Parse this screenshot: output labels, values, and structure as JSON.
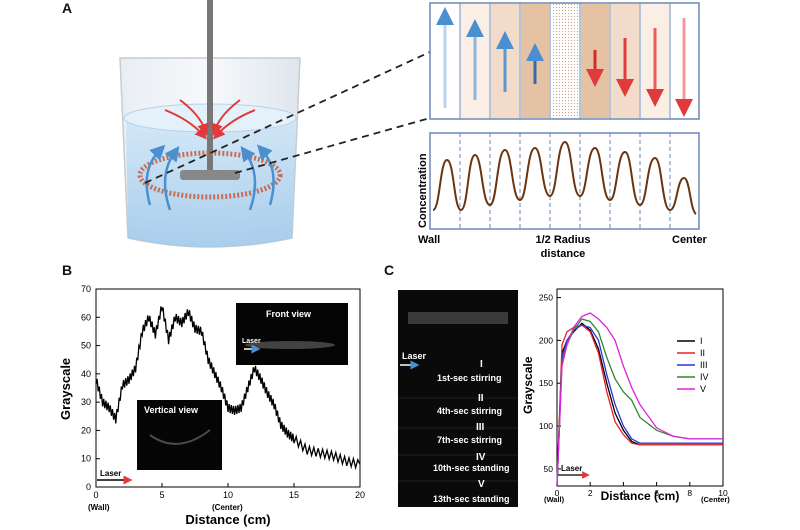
{
  "panels": {
    "a": {
      "letter": "A",
      "plot": {
        "ylabel": "Concentration",
        "x_left": "Wall",
        "x_mid1": "1/2 Radius",
        "x_mid2": "distance",
        "x_right": "Center"
      }
    },
    "b": {
      "letter": "B",
      "chart": {
        "type": "line",
        "xlabel": "Distance (cm)",
        "ylabel": "Grayscale",
        "xticks": [
          "0",
          "5",
          "10",
          "15",
          "20"
        ],
        "yticks": [
          "0",
          "10",
          "20",
          "30",
          "40",
          "50",
          "60",
          "70"
        ],
        "wall": "(Wall)",
        "center": "(Center)",
        "laser": "Laser",
        "inset_front": "Front view",
        "inset_front_laser": "Laser",
        "inset_vertical": "Vertical view"
      }
    },
    "c": {
      "letter": "C",
      "strip": {
        "laser": "Laser",
        "frames": [
          {
            "roman": "I",
            "text": "1st-sec stirring"
          },
          {
            "roman": "II",
            "text": "4th-sec stirring"
          },
          {
            "roman": "III",
            "text": "7th-sec stirring"
          },
          {
            "roman": "IV",
            "text": "10th-sec standing"
          },
          {
            "roman": "V",
            "text": "13th-sec standing"
          }
        ]
      },
      "chart": {
        "type": "line",
        "xlabel": "Distance (cm)",
        "ylabel": "Grayscale",
        "xticks": [
          "0",
          "2",
          "4",
          "6",
          "8",
          "10"
        ],
        "yticks": [
          "50",
          "100",
          "150",
          "200",
          "250"
        ],
        "wall": "(Wall)",
        "center": "(Center)",
        "laser": "Laser",
        "legend": [
          "I",
          "II",
          "III",
          "IV",
          "V"
        ]
      }
    }
  },
  "chart_data": [
    {
      "type": "line",
      "xlabel": "Distance (cm)",
      "ylabel": "Grayscale",
      "xlim": [
        0,
        20
      ],
      "ylim": [
        0,
        70
      ],
      "x": [
        0,
        0.5,
        1,
        1.5,
        2,
        2.5,
        3,
        3.5,
        4,
        4.5,
        5,
        5.5,
        6,
        6.5,
        7,
        7.5,
        8,
        8.5,
        9,
        9.5,
        10,
        10.5,
        11,
        11.5,
        12,
        12.5,
        13,
        13.5,
        14,
        14.5,
        15,
        16,
        17,
        18,
        19,
        20
      ],
      "y": [
        38,
        30,
        28,
        24,
        36,
        38,
        42,
        55,
        60,
        54,
        64,
        52,
        60,
        58,
        62,
        56,
        55,
        45,
        40,
        35,
        28,
        27,
        28,
        35,
        42,
        38,
        33,
        29,
        22,
        19,
        17,
        13,
        12,
        11,
        9,
        8
      ]
    },
    {
      "type": "line",
      "xlabel": "Distance (cm)",
      "ylabel": "Grayscale",
      "xlim": [
        0,
        10
      ],
      "ylim": [
        30,
        260
      ],
      "series": [
        {
          "name": "I",
          "color": "#000000",
          "x": [
            0,
            0.3,
            0.6,
            1,
            1.5,
            2,
            2.5,
            3,
            3.5,
            4,
            4.5,
            5,
            6,
            7,
            8,
            9,
            10
          ],
          "y": [
            30,
            185,
            200,
            210,
            220,
            212,
            190,
            150,
            115,
            95,
            82,
            78,
            78,
            78,
            78,
            78,
            78
          ]
        },
        {
          "name": "II",
          "color": "#e8202a",
          "x": [
            0,
            0.3,
            0.6,
            1,
            1.5,
            2,
            2.5,
            3,
            3.5,
            4,
            4.5,
            5,
            6,
            7,
            8,
            9,
            10
          ],
          "y": [
            30,
            195,
            210,
            215,
            218,
            210,
            185,
            140,
            105,
            90,
            80,
            78,
            78,
            78,
            78,
            78,
            78
          ]
        },
        {
          "name": "III",
          "color": "#2a36d6",
          "x": [
            0,
            0.3,
            0.6,
            1,
            1.5,
            2,
            2.5,
            3,
            3.5,
            4,
            4.5,
            5,
            6,
            7,
            8,
            9,
            10
          ],
          "y": [
            30,
            180,
            200,
            212,
            218,
            215,
            200,
            160,
            125,
            100,
            85,
            80,
            80,
            80,
            80,
            80,
            80
          ]
        },
        {
          "name": "IV",
          "color": "#2d8a2d",
          "x": [
            0,
            0.3,
            0.6,
            1,
            1.5,
            2,
            2.5,
            3,
            3.5,
            4,
            4.5,
            5,
            6,
            7,
            8,
            9,
            10
          ],
          "y": [
            30,
            175,
            195,
            212,
            225,
            222,
            210,
            180,
            155,
            140,
            130,
            110,
            95,
            88,
            85,
            85,
            85
          ]
        },
        {
          "name": "V",
          "color": "#e020e0",
          "x": [
            0,
            0.3,
            0.6,
            1,
            1.5,
            2,
            2.5,
            3,
            3.5,
            4,
            4.5,
            5,
            6,
            7,
            8,
            9,
            10
          ],
          "y": [
            30,
            170,
            195,
            215,
            228,
            232,
            225,
            215,
            200,
            170,
            145,
            125,
            98,
            88,
            85,
            85,
            85
          ]
        }
      ]
    }
  ]
}
